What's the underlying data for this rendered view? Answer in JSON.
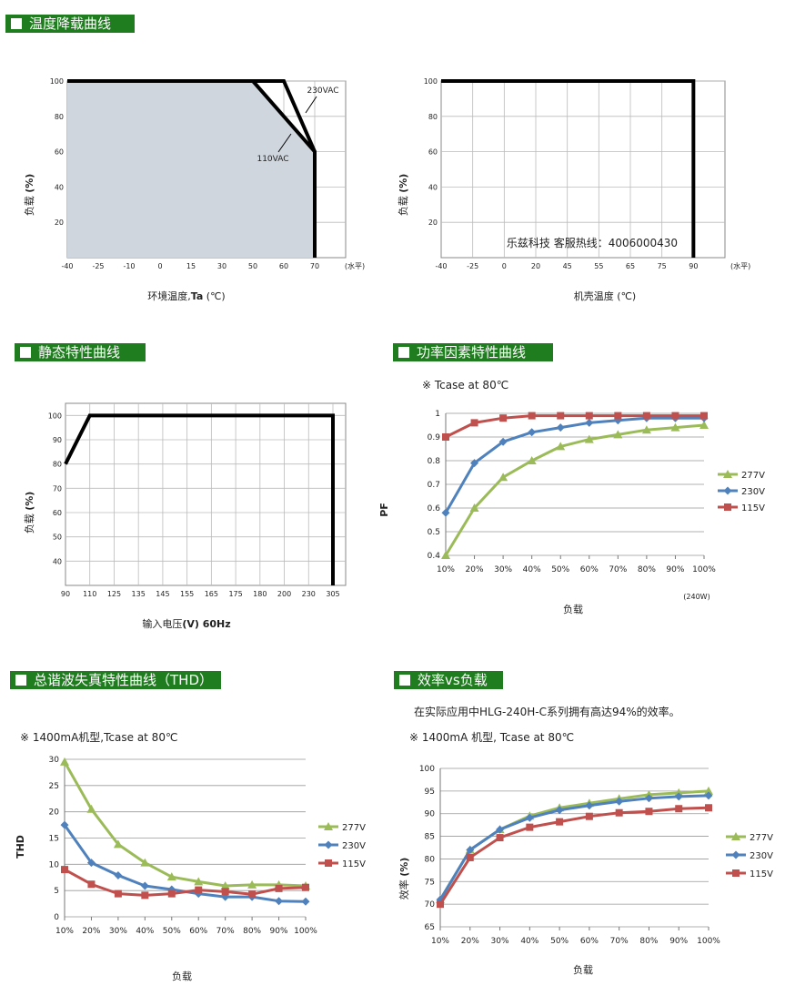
{
  "sections": {
    "derating": "温度降载曲线",
    "static": "静态特性曲线",
    "pf": "功率因素特性曲线",
    "thd": "总谐波失真特性曲线（THD）",
    "eff": "效率vs负载"
  },
  "notes": {
    "pf_note": "※ Tcase at 80℃",
    "thd_note": "※ 1400mA机型,Tcase at 80℃",
    "eff_desc": "在实际应用中HLG-240H-C系列拥有高达94%的效率。",
    "eff_note": "※ 1400mA 机型, Tcase at 80℃",
    "watermark": "乐兹科技 客服热线：4006000430"
  },
  "chart_data": [
    {
      "id": "ambient-derating",
      "type": "line",
      "x": [
        -40,
        60,
        70,
        70
      ],
      "series": [
        {
          "name": "230VAC",
          "values": [
            100,
            100,
            60,
            0
          ]
        },
        {
          "name": "110VAC",
          "values": [
            100,
            100,
            60,
            0
          ]
        }
      ],
      "series_x": {
        "230VAC": [
          -40,
          60,
          70,
          70
        ],
        "110VAC": [
          -40,
          50,
          70,
          70
        ]
      },
      "xticks": [
        "-40",
        "-25",
        "-10",
        "0",
        "15",
        "30",
        "50",
        "60",
        "70"
      ],
      "xunit": "(水平)",
      "yticks": [
        20,
        40,
        60,
        80,
        100
      ],
      "ylim": [
        0,
        100
      ],
      "xlabel_prefix": "环境温度,",
      "xlabel_bold": "Ta",
      "xlabel_suffix": " (℃)",
      "ylabel": "负载",
      "ylabel_unit": "(%)",
      "annotations": [
        "230VAC",
        "110VAC"
      ]
    },
    {
      "id": "case-derating",
      "type": "line",
      "x": [
        -40,
        90,
        90
      ],
      "values": [
        100,
        100,
        0
      ],
      "xticks": [
        "-40",
        "-25",
        "0",
        "20",
        "45",
        "55",
        "65",
        "75",
        "90"
      ],
      "xunit": "(水平)",
      "yticks": [
        20,
        40,
        60,
        80,
        100
      ],
      "ylim": [
        0,
        100
      ],
      "xlabel": "机壳温度 (℃)",
      "ylabel": "负载",
      "ylabel_unit": "(%)"
    },
    {
      "id": "static-characteristic",
      "type": "line",
      "x": [
        90,
        110,
        305,
        305
      ],
      "values": [
        80,
        100,
        100,
        30
      ],
      "xticks": [
        "90",
        "110",
        "125",
        "135",
        "145",
        "155",
        "165",
        "175",
        "180",
        "200",
        "230",
        "305"
      ],
      "yticks": [
        40,
        50,
        60,
        70,
        80,
        90,
        100
      ],
      "ylim": [
        30,
        105
      ],
      "xlabel_prefix": "输入电压",
      "xlabel_bold": "(V) 60Hz",
      "ylabel": "负载",
      "ylabel_unit": "(%)"
    },
    {
      "id": "power-factor",
      "type": "line",
      "categories": [
        "10%",
        "20%",
        "30%",
        "40%",
        "50%",
        "60%",
        "70%",
        "80%",
        "90%",
        "100%"
      ],
      "series": [
        {
          "name": "277V",
          "color": "#9bbb59",
          "values": [
            0.4,
            0.6,
            0.73,
            0.8,
            0.86,
            0.89,
            0.91,
            0.93,
            0.94,
            0.95
          ]
        },
        {
          "name": "230V",
          "color": "#4f81bd",
          "values": [
            0.58,
            0.79,
            0.88,
            0.92,
            0.94,
            0.96,
            0.97,
            0.98,
            0.98,
            0.98
          ]
        },
        {
          "name": "115V",
          "color": "#c0504d",
          "values": [
            0.9,
            0.96,
            0.98,
            0.99,
            0.99,
            0.99,
            0.99,
            0.99,
            0.99,
            0.99
          ]
        }
      ],
      "yticks": [
        "0.4",
        "0.5",
        "0.6",
        "0.7",
        "0.8",
        "0.9",
        "1"
      ],
      "ylim": [
        0.4,
        1.0
      ],
      "xlabel": "负载",
      "ylabel": "PF",
      "footnote": "(240W)"
    },
    {
      "id": "thd",
      "type": "line",
      "categories": [
        "10%",
        "20%",
        "30%",
        "40%",
        "50%",
        "60%",
        "70%",
        "80%",
        "90%",
        "100%"
      ],
      "series": [
        {
          "name": "277V",
          "color": "#9bbb59",
          "values": [
            29.5,
            20.5,
            13.8,
            10.3,
            7.6,
            6.7,
            5.9,
            6.1,
            6.1,
            5.9
          ]
        },
        {
          "name": "230V",
          "color": "#4f81bd",
          "values": [
            17.5,
            10.3,
            7.9,
            5.9,
            5.2,
            4.4,
            3.8,
            3.8,
            3.0,
            2.9
          ]
        },
        {
          "name": "115V",
          "color": "#c0504d",
          "values": [
            9.0,
            6.2,
            4.4,
            4.1,
            4.4,
            5.1,
            4.8,
            4.3,
            5.4,
            5.6
          ]
        }
      ],
      "yticks": [
        "0",
        "5",
        "10",
        "15",
        "20",
        "25",
        "30"
      ],
      "ylim": [
        0,
        30
      ],
      "xlabel": "负载",
      "ylabel": "THD"
    },
    {
      "id": "efficiency",
      "type": "line",
      "categories": [
        "10%",
        "20%",
        "30%",
        "40%",
        "50%",
        "60%",
        "70%",
        "80%",
        "90%",
        "100%"
      ],
      "series": [
        {
          "name": "277V",
          "color": "#9bbb59",
          "values": [
            71.0,
            82.0,
            86.5,
            89.5,
            91.3,
            92.3,
            93.3,
            94.2,
            94.6,
            95.0
          ]
        },
        {
          "name": "230V",
          "color": "#4f81bd",
          "values": [
            71.0,
            82.0,
            86.5,
            89.1,
            90.8,
            91.8,
            92.7,
            93.4,
            93.8,
            94.0
          ]
        },
        {
          "name": "115V",
          "color": "#c0504d",
          "values": [
            70.0,
            80.3,
            84.7,
            87.0,
            88.2,
            89.4,
            90.2,
            90.5,
            91.1,
            91.3
          ]
        }
      ],
      "yticks": [
        "65",
        "70",
        "75",
        "80",
        "85",
        "90",
        "95",
        "100"
      ],
      "ylim": [
        65,
        100
      ],
      "xlabel": "负载",
      "ylabel": "效率",
      "ylabel_unit": "(%)"
    }
  ]
}
